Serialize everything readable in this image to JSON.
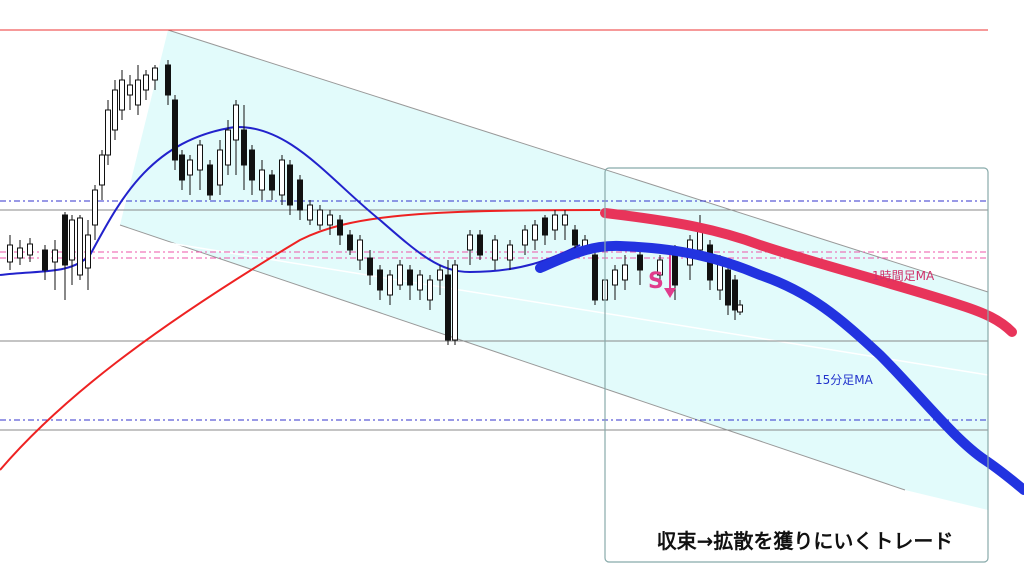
{
  "annotations": {
    "signal": "S",
    "hourly_ma": "1時間足MA",
    "ma15": "15分足MA",
    "caption": "収束→拡散を獲りにいくトレード"
  }
}
